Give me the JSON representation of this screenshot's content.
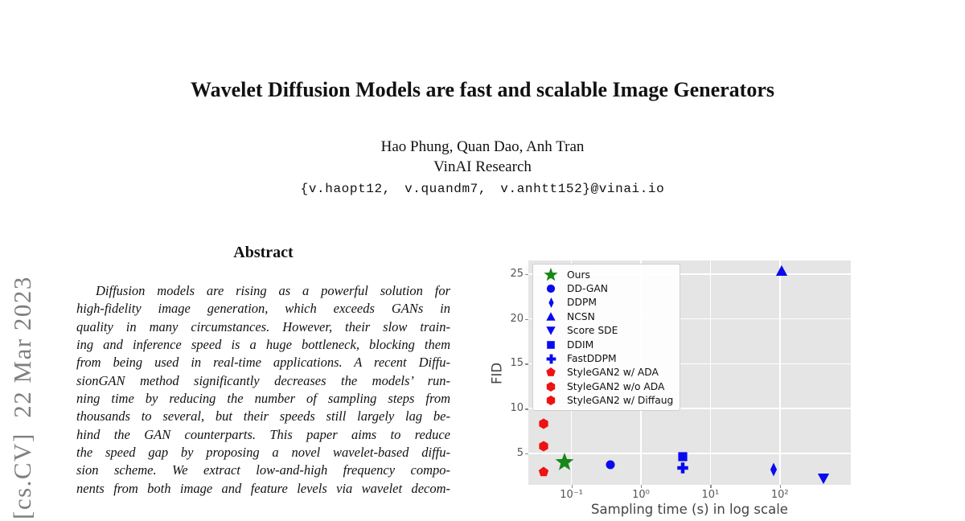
{
  "arxiv_stamp": "[cs.CV]  22 Mar 2023",
  "paper": {
    "title": "Wavelet Diffusion Models are fast and scalable Image Generators",
    "authors": "Hao Phung, Quan Dao, Anh Tran",
    "affiliation": "VinAI Research",
    "emails": "{v.haopt12, v.quandm7, v.anhtt152}@vinai.io"
  },
  "abstract": {
    "heading": "Abstract",
    "lines": [
      "Diffusion models are rising as a powerful solution for",
      "high-fidelity image generation, which exceeds GANs in",
      "quality in many circumstances. However, their slow train-",
      "ing and inference speed is a huge bottleneck, blocking them",
      "from being used in real-time applications. A recent Diffu-",
      "sionGAN method significantly decreases the models’ run-",
      "ning time by reducing the number of sampling steps from",
      "thousands to several, but their speeds still largely lag be-",
      "hind the GAN counterparts. This paper aims to reduce",
      "the speed gap by proposing a novel wavelet-based diffu-",
      "sion scheme. We extract low-and-high frequency compo-",
      "nents from both image and feature levels via wavelet decom-"
    ]
  },
  "chart_data": {
    "type": "scatter",
    "title": "",
    "xlabel": "Sampling time (s) in log scale",
    "ylabel": "FID",
    "x_scale": "log",
    "xlim": [
      0.024,
      1050
    ],
    "ylim": [
      1.5,
      26.5
    ],
    "x_ticks": [
      0.1,
      1,
      10,
      100
    ],
    "x_tick_labels": [
      "10⁻¹",
      "10⁰",
      "10¹",
      "10²"
    ],
    "y_ticks": [
      5,
      10,
      15,
      20,
      25
    ],
    "grid": true,
    "legend_position": "upper left",
    "plot_bg": "#e5e5e5",
    "colors": {
      "ours": "#178717",
      "diffusion": "#0a0af0",
      "gan": "#ee1212"
    },
    "series": [
      {
        "name": "Ours",
        "marker": "star",
        "color": "#178717",
        "size": 24,
        "legend_size": 18,
        "points": [
          {
            "x": 0.08,
            "y": 4.01
          }
        ]
      },
      {
        "name": "DD-GAN",
        "marker": "circle",
        "color": "#0a0af0",
        "size": 13,
        "legend_size": 12,
        "points": [
          {
            "x": 0.36,
            "y": 3.75
          }
        ]
      },
      {
        "name": "DDPM",
        "marker": "diamond",
        "color": "#0a0af0",
        "size": 17,
        "legend_size": 13,
        "points": [
          {
            "x": 80.5,
            "y": 3.21
          }
        ]
      },
      {
        "name": "NCSN",
        "marker": "triangle-up",
        "color": "#0a0af0",
        "size": 15,
        "legend_size": 12,
        "points": [
          {
            "x": 107,
            "y": 25.3
          }
        ]
      },
      {
        "name": "Score SDE",
        "marker": "triangle-down",
        "color": "#0a0af0",
        "size": 15,
        "legend_size": 12,
        "points": [
          {
            "x": 423,
            "y": 2.2
          }
        ]
      },
      {
        "name": "DDIM",
        "marker": "square",
        "color": "#0a0af0",
        "size": 14,
        "legend_size": 12,
        "points": [
          {
            "x": 4.0,
            "y": 4.67
          }
        ]
      },
      {
        "name": "FastDDPM",
        "marker": "plus",
        "color": "#0a0af0",
        "size": 15,
        "legend_size": 13,
        "points": [
          {
            "x": 4.0,
            "y": 3.41
          }
        ]
      },
      {
        "name": "StyleGAN2 w/ ADA",
        "marker": "pentagon",
        "color": "#ee1212",
        "size": 13,
        "legend_size": 12,
        "points": [
          {
            "x": 0.04,
            "y": 2.92
          }
        ]
      },
      {
        "name": "StyleGAN2 w/o ADA",
        "marker": "hexagon",
        "color": "#ee1212",
        "size": 13,
        "legend_size": 12,
        "points": [
          {
            "x": 0.04,
            "y": 8.32
          }
        ]
      },
      {
        "name": "StyleGAN2 w/ Diffaug",
        "marker": "hexagon",
        "color": "#ee1212",
        "size": 13,
        "legend_size": 12,
        "points": [
          {
            "x": 0.04,
            "y": 5.79
          }
        ]
      }
    ]
  }
}
